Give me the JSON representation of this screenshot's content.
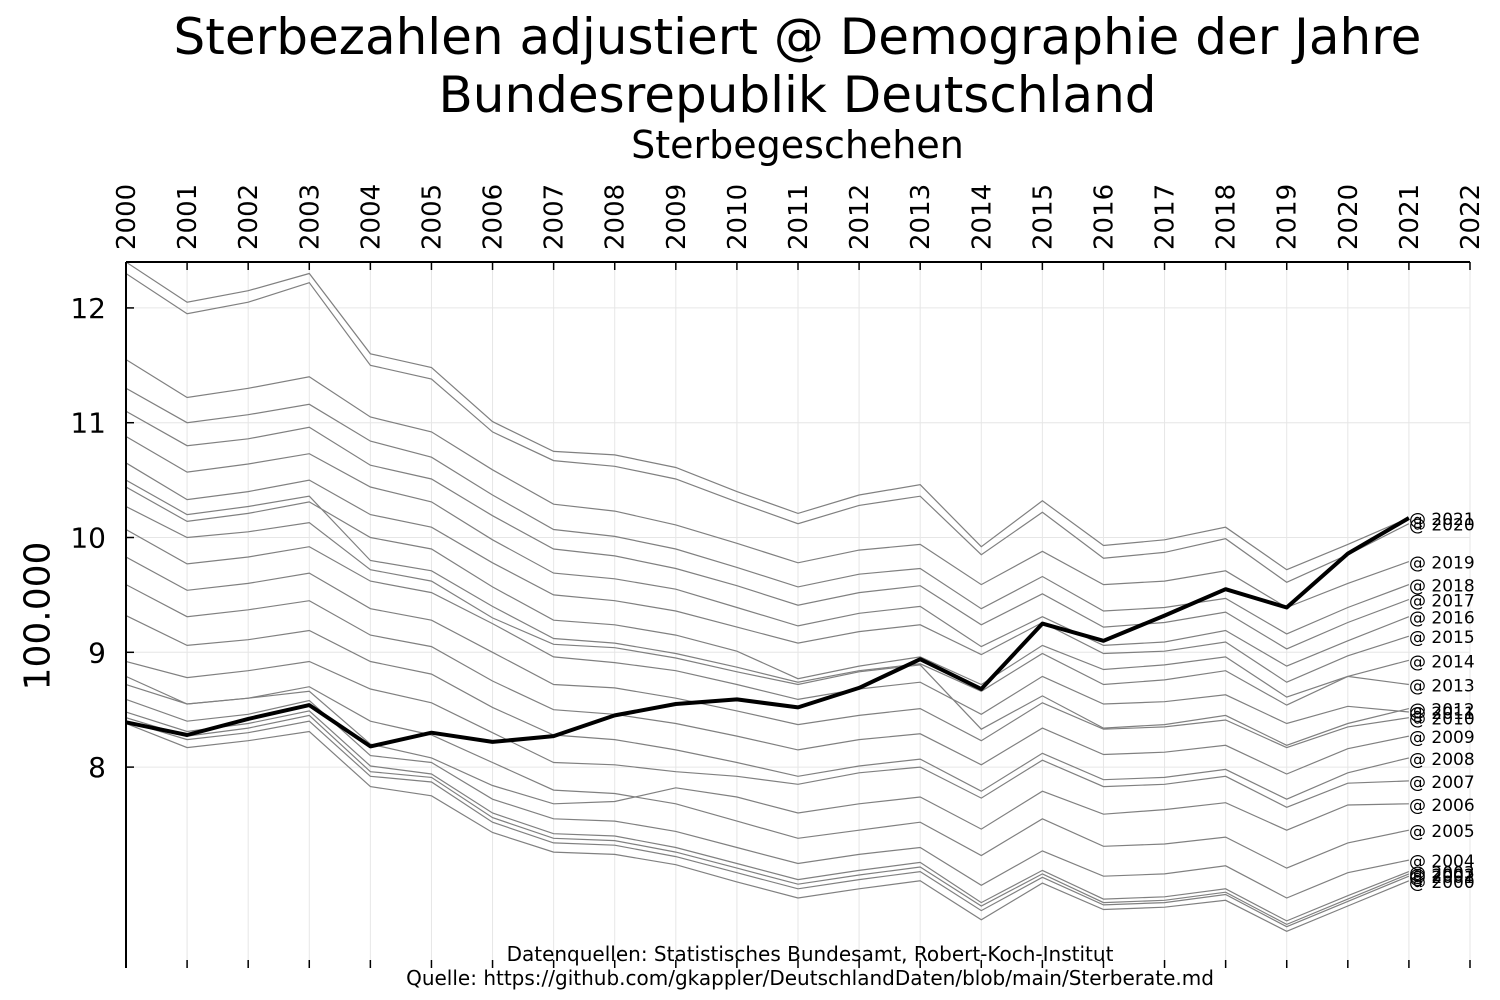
{
  "header": {
    "title_line1": "Sterbezahlen adjustiert @ Demographie der Jahre",
    "title_line2": "Bundesrepublik Deutschland",
    "subtitle": "Sterbegeschehen"
  },
  "footer": {
    "source_line1": "Datenquellen: Statistisches Bundesamt, Robert-Koch-Institut",
    "source_line2": "Quelle: https://github.com/gkappler/DeutschlandDaten/blob/main/Sterberate.md"
  },
  "colors": {
    "actual_line": "#000000",
    "adjusted_lines": "#808080",
    "grid": "#e6e6e6"
  },
  "chart_data": {
    "type": "line",
    "title": "Sterbegeschehen",
    "ylabel": "100.000",
    "x_ticks": [
      2000,
      2001,
      2002,
      2003,
      2004,
      2005,
      2006,
      2007,
      2008,
      2009,
      2010,
      2011,
      2012,
      2013,
      2014,
      2015,
      2016,
      2017,
      2018,
      2019,
      2020,
      2021,
      2022
    ],
    "y_ticks": [
      8,
      9,
      10,
      11,
      12
    ],
    "xlim": [
      2000,
      2022
    ],
    "ylim": [
      6.25,
      12.4
    ],
    "grid": true,
    "x_axis_position": "top",
    "x": [
      2000,
      2001,
      2002,
      2003,
      2004,
      2005,
      2006,
      2007,
      2008,
      2009,
      2010,
      2011,
      2012,
      2013,
      2014,
      2015,
      2016,
      2017,
      2018,
      2019,
      2020,
      2021
    ],
    "actual": [
      8.39,
      8.28,
      8.42,
      8.54,
      8.18,
      8.3,
      8.22,
      8.27,
      8.45,
      8.55,
      8.59,
      8.52,
      8.69,
      8.94,
      8.68,
      9.25,
      9.1,
      9.32,
      9.55,
      9.39,
      9.86,
      10.17
    ],
    "series": [
      {
        "label": "@ 2000",
        "values": [
          8.38,
          8.17,
          8.23,
          8.31,
          7.83,
          7.75,
          7.43,
          7.26,
          7.24,
          7.15,
          7.0,
          6.86,
          6.94,
          7.01,
          6.67,
          6.99,
          6.76,
          6.78,
          6.84,
          6.57,
          6.79,
          7.01
        ]
      },
      {
        "label": "@ 2001",
        "values": [
          8.4,
          8.24,
          8.3,
          8.4,
          7.92,
          7.87,
          7.52,
          7.34,
          7.32,
          7.22,
          7.08,
          6.94,
          7.02,
          7.09,
          6.75,
          7.04,
          6.8,
          6.82,
          6.89,
          6.61,
          6.83,
          7.05
        ]
      },
      {
        "label": "@ 2002",
        "values": [
          8.43,
          8.27,
          8.34,
          8.45,
          7.96,
          7.91,
          7.56,
          7.38,
          7.36,
          7.26,
          7.12,
          6.98,
          7.06,
          7.13,
          6.79,
          7.07,
          6.82,
          6.84,
          6.91,
          6.63,
          6.85,
          7.07
        ]
      },
      {
        "label": "@ 2003",
        "values": [
          8.48,
          8.31,
          8.38,
          8.49,
          8.01,
          7.94,
          7.6,
          7.42,
          7.4,
          7.3,
          7.16,
          7.02,
          7.1,
          7.17,
          6.82,
          7.1,
          6.85,
          6.87,
          6.94,
          6.66,
          6.88,
          7.09
        ]
      },
      {
        "label": "@ 2004",
        "values": [
          8.59,
          8.4,
          8.46,
          8.58,
          8.1,
          8.04,
          7.72,
          7.55,
          7.53,
          7.44,
          7.3,
          7.16,
          7.24,
          7.3,
          6.97,
          7.27,
          7.05,
          7.07,
          7.14,
          6.86,
          7.08,
          7.19
        ]
      },
      {
        "label": "@ 2005",
        "values": [
          8.72,
          8.55,
          8.6,
          8.7,
          8.4,
          8.28,
          8.04,
          7.8,
          7.77,
          7.68,
          7.53,
          7.38,
          7.45,
          7.52,
          7.23,
          7.55,
          7.31,
          7.33,
          7.39,
          7.12,
          7.34,
          7.45
        ]
      },
      {
        "label": "@ 2006",
        "values": [
          8.79,
          8.55,
          8.6,
          8.66,
          8.2,
          8.08,
          7.84,
          7.68,
          7.7,
          7.82,
          7.74,
          7.6,
          7.68,
          7.74,
          7.46,
          7.79,
          7.59,
          7.63,
          7.69,
          7.45,
          7.67,
          7.68
        ]
      },
      {
        "label": "@ 2007",
        "values": [
          8.92,
          8.78,
          8.84,
          8.92,
          8.68,
          8.56,
          8.3,
          8.04,
          8.02,
          7.96,
          7.92,
          7.85,
          7.95,
          8.0,
          7.73,
          8.06,
          7.83,
          7.85,
          7.92,
          7.65,
          7.86,
          7.88
        ]
      },
      {
        "label": "@ 2008",
        "values": [
          9.32,
          9.06,
          9.11,
          9.19,
          8.92,
          8.81,
          8.52,
          8.28,
          8.24,
          8.15,
          8.04,
          7.92,
          8.01,
          8.07,
          7.79,
          8.12,
          7.89,
          7.91,
          7.98,
          7.72,
          7.95,
          8.08
        ]
      },
      {
        "label": "@ 2009",
        "values": [
          9.59,
          9.31,
          9.37,
          9.45,
          9.15,
          9.05,
          8.75,
          8.5,
          8.46,
          8.38,
          8.27,
          8.15,
          8.24,
          8.29,
          8.02,
          8.34,
          8.11,
          8.13,
          8.19,
          7.94,
          8.16,
          8.27
        ]
      },
      {
        "label": "@ 2010",
        "values": [
          9.83,
          9.54,
          9.6,
          9.69,
          9.38,
          9.28,
          9.0,
          8.72,
          8.69,
          8.6,
          8.49,
          8.37,
          8.45,
          8.51,
          8.23,
          8.56,
          8.33,
          8.35,
          8.41,
          8.17,
          8.35,
          8.43
        ]
      },
      {
        "label": "@ 2011",
        "values": [
          10.07,
          9.77,
          9.83,
          9.92,
          9.62,
          9.52,
          9.25,
          8.96,
          8.91,
          8.84,
          8.72,
          8.59,
          8.68,
          8.74,
          8.46,
          8.79,
          8.55,
          8.57,
          8.63,
          8.38,
          8.53,
          8.48
        ]
      },
      {
        "label": "@ 2012",
        "values": [
          10.27,
          10.0,
          10.05,
          10.13,
          9.72,
          9.62,
          9.3,
          9.07,
          9.04,
          8.95,
          8.83,
          8.72,
          8.83,
          8.89,
          8.33,
          8.62,
          8.34,
          8.37,
          8.45,
          8.19,
          8.38,
          8.51
        ]
      },
      {
        "label": "@ 2013",
        "values": [
          10.44,
          10.14,
          10.21,
          10.31,
          10.0,
          9.9,
          9.57,
          9.28,
          9.24,
          9.15,
          9.01,
          8.77,
          8.88,
          8.96,
          8.72,
          9.06,
          8.85,
          8.89,
          8.96,
          8.61,
          8.79,
          8.72
        ]
      },
      {
        "label": "@ 2014",
        "values": [
          10.5,
          10.2,
          10.27,
          10.36,
          9.8,
          9.71,
          9.4,
          9.12,
          9.08,
          8.99,
          8.87,
          8.74,
          8.84,
          8.9,
          8.66,
          8.99,
          8.72,
          8.76,
          8.84,
          8.54,
          8.79,
          8.93
        ]
      },
      {
        "label": "@ 2015",
        "values": [
          10.65,
          10.33,
          10.4,
          10.5,
          10.2,
          10.09,
          9.78,
          9.5,
          9.45,
          9.36,
          9.22,
          9.08,
          9.18,
          9.24,
          8.98,
          9.26,
          8.99,
          9.01,
          9.09,
          8.74,
          8.97,
          9.14
        ]
      },
      {
        "label": "@ 2016",
        "values": [
          10.88,
          10.57,
          10.64,
          10.73,
          10.44,
          10.31,
          9.98,
          9.69,
          9.64,
          9.55,
          9.39,
          9.23,
          9.34,
          9.4,
          9.05,
          9.31,
          9.06,
          9.09,
          9.19,
          8.88,
          9.1,
          9.31
        ]
      },
      {
        "label": "@ 2017",
        "values": [
          11.1,
          10.8,
          10.86,
          10.96,
          10.63,
          10.51,
          10.19,
          9.9,
          9.84,
          9.73,
          9.58,
          9.41,
          9.52,
          9.58,
          9.24,
          9.51,
          9.22,
          9.26,
          9.35,
          9.03,
          9.26,
          9.46
        ]
      },
      {
        "label": "@ 2018",
        "values": [
          11.3,
          11.0,
          11.07,
          11.16,
          10.84,
          10.7,
          10.37,
          10.07,
          10.01,
          9.9,
          9.74,
          9.57,
          9.68,
          9.73,
          9.38,
          9.66,
          9.36,
          9.39,
          9.47,
          9.16,
          9.39,
          9.59
        ]
      },
      {
        "label": "@ 2019",
        "values": [
          11.55,
          11.22,
          11.3,
          11.4,
          11.05,
          10.92,
          10.59,
          10.29,
          10.23,
          10.11,
          9.95,
          9.78,
          9.89,
          9.94,
          9.59,
          9.88,
          9.59,
          9.62,
          9.71,
          9.39,
          9.6,
          9.79
        ]
      },
      {
        "label": "@ 2020",
        "values": [
          12.3,
          11.95,
          12.05,
          12.22,
          11.5,
          11.38,
          10.92,
          10.67,
          10.62,
          10.51,
          10.31,
          10.12,
          10.28,
          10.36,
          9.85,
          10.22,
          9.82,
          9.87,
          9.99,
          9.61,
          9.85,
          10.12
        ]
      },
      {
        "label": "@ 2021",
        "values": [
          12.4,
          12.05,
          12.15,
          12.3,
          11.6,
          11.48,
          11.01,
          10.75,
          10.72,
          10.61,
          10.4,
          10.21,
          10.37,
          10.46,
          9.92,
          10.32,
          9.93,
          9.98,
          10.09,
          9.72,
          9.94,
          10.17
        ]
      }
    ]
  }
}
